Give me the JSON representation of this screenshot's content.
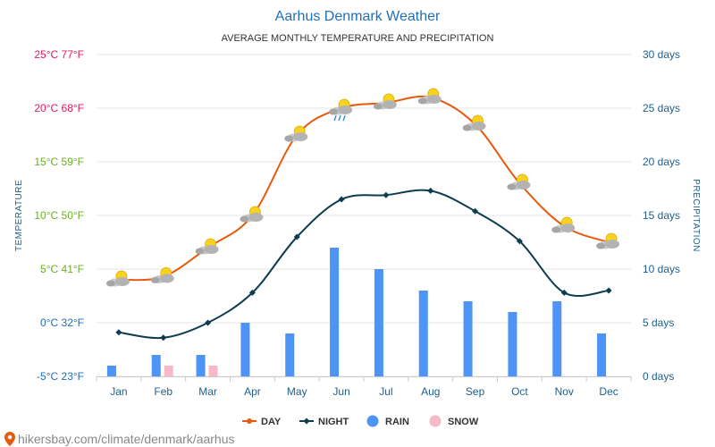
{
  "page": {
    "title": "Aarhus Denmark Weather",
    "subtitle": "AVERAGE MONTHLY TEMPERATURE AND PRECIPITATION",
    "footer": "hikersbay.com/climate/denmark/aarhus"
  },
  "chart_data": {
    "type": "line",
    "categories": [
      "Jan",
      "Feb",
      "Mar",
      "Apr",
      "May",
      "Jun",
      "Jul",
      "Aug",
      "Sep",
      "Oct",
      "Nov",
      "Dec"
    ],
    "y_left": {
      "label": "TEMPERATURE",
      "range": [
        -5,
        25
      ],
      "ticks": [
        {
          "value": 25,
          "label": "25°C 77°F",
          "color": "#e8175d"
        },
        {
          "value": 20,
          "label": "20°C 68°F",
          "color": "#e8175d"
        },
        {
          "value": 15,
          "label": "15°C 59°F",
          "color": "#6ab023"
        },
        {
          "value": 10,
          "label": "10°C 50°F",
          "color": "#6ab023"
        },
        {
          "value": 5,
          "label": "5°C 41°F",
          "color": "#6ab023"
        },
        {
          "value": 0,
          "label": "0°C 32°F",
          "color": "#1f6fb5"
        },
        {
          "value": -5,
          "label": "-5°C 23°F",
          "color": "#1f6fb5"
        }
      ]
    },
    "y_right": {
      "label": "PRECIPITATION",
      "range": [
        0,
        30
      ],
      "ticks": [
        "30 days",
        "25 days",
        "20 days",
        "15 days",
        "10 days",
        "5 days",
        "0 days"
      ]
    },
    "series": [
      {
        "name": "DAY",
        "kind": "line",
        "color": "#e8590c",
        "values": [
          4,
          4.3,
          7,
          10,
          17.5,
          20,
          20.5,
          21,
          18.5,
          13,
          9,
          7.5
        ]
      },
      {
        "name": "NIGHT",
        "kind": "line",
        "color": "#0d3b4f",
        "values": [
          -0.9,
          -1.4,
          0,
          2.8,
          8,
          11.5,
          11.9,
          12.3,
          10.4,
          7.6,
          2.8,
          3
        ]
      },
      {
        "name": "RAIN",
        "kind": "bar",
        "color": "#4e94f7",
        "values": [
          1,
          2,
          2,
          5,
          4,
          12,
          10,
          8,
          7,
          6,
          7,
          4
        ]
      },
      {
        "name": "SNOW",
        "kind": "bar",
        "color": "#f7b8c8",
        "values": [
          0,
          1,
          1,
          0,
          0,
          0,
          0,
          0,
          0,
          0,
          0,
          0
        ]
      }
    ],
    "weather_icons": [
      "partly-cloudy-icon",
      "partly-cloudy-icon",
      "partly-cloudy-icon",
      "partly-cloudy-icon",
      "partly-cloudy-icon",
      "partly-cloudy-rain-icon",
      "partly-cloudy-icon",
      "partly-cloudy-icon",
      "partly-cloudy-icon",
      "partly-cloudy-icon",
      "partly-cloudy-icon",
      "partly-cloudy-icon"
    ],
    "grid": true,
    "legend_position": "bottom-center"
  }
}
